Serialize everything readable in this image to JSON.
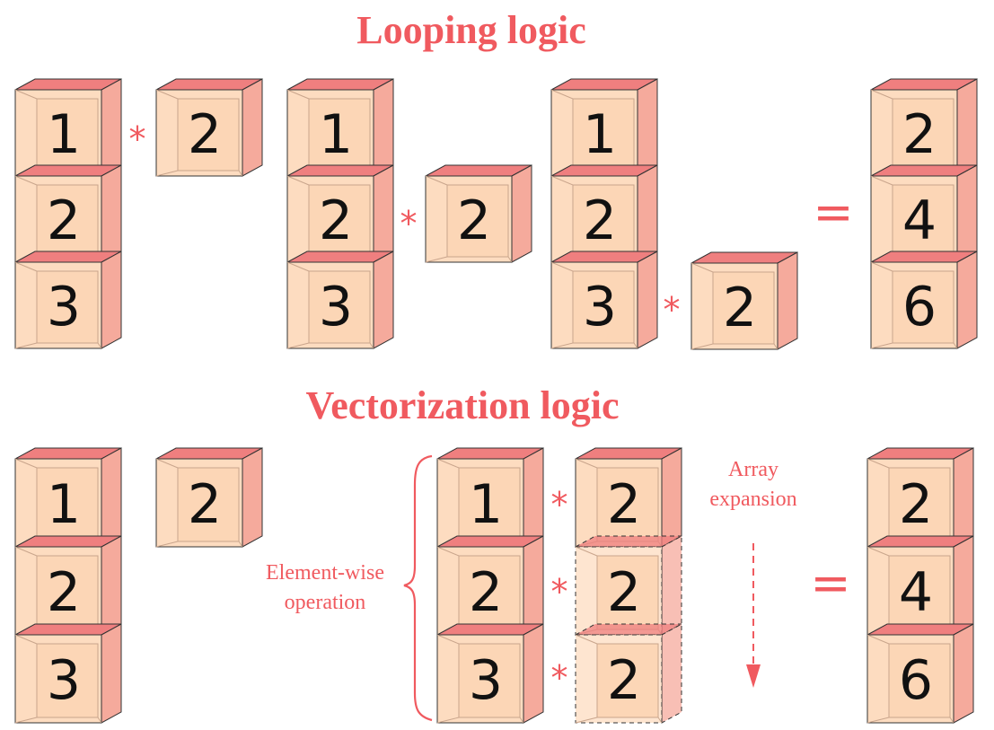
{
  "titles": {
    "looping": "Looping logic",
    "vectorization": "Vectorization logic"
  },
  "looping": {
    "vector": [
      "1",
      "2",
      "3"
    ],
    "scalar": "2",
    "operator": "*",
    "equals": "=",
    "result": [
      "2",
      "4",
      "6"
    ]
  },
  "vectorization": {
    "vector": [
      "1",
      "2",
      "3"
    ],
    "scalar": "2",
    "expanded": [
      "2",
      "2",
      "2"
    ],
    "operator": "*",
    "equals": "=",
    "result": [
      "2",
      "4",
      "6"
    ],
    "elementwise_label": [
      "Element-wise",
      "operation"
    ],
    "expansion_label": [
      "Array",
      "expansion"
    ]
  },
  "colors": {
    "accent": "#f05a5f",
    "face": "#fddcc0",
    "inner": "#fcd6b6",
    "top": "#ef7f7f",
    "side": "#f5aa9c",
    "edge": "#333333"
  }
}
